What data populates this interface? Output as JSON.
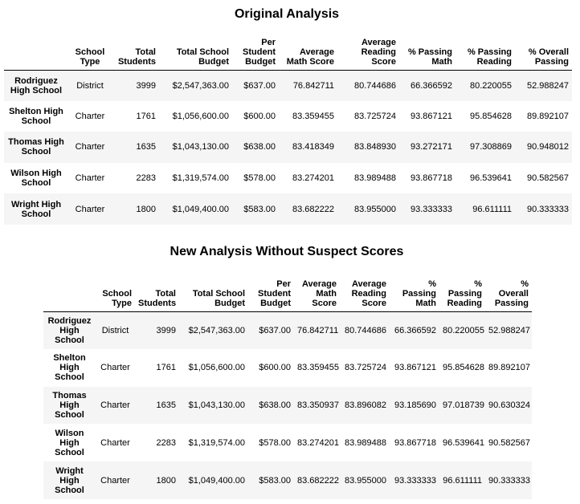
{
  "original": {
    "title": "Original Analysis",
    "columns": [
      "",
      "School Type",
      "Total Students",
      "Total School Budget",
      "Per Student Budget",
      "Average Math Score",
      "Average Reading Score",
      "% Passing Math",
      "% Passing Reading",
      "% Overall Passing"
    ],
    "rows": [
      [
        "Rodriguez High School",
        "District",
        "3999",
        "$2,547,363.00",
        "$637.00",
        "76.842711",
        "80.744686",
        "66.366592",
        "80.220055",
        "52.988247"
      ],
      [
        "Shelton High School",
        "Charter",
        "1761",
        "$1,056,600.00",
        "$600.00",
        "83.359455",
        "83.725724",
        "93.867121",
        "95.854628",
        "89.892107"
      ],
      [
        "Thomas High School",
        "Charter",
        "1635",
        "$1,043,130.00",
        "$638.00",
        "83.418349",
        "83.848930",
        "93.272171",
        "97.308869",
        "90.948012"
      ],
      [
        "Wilson High School",
        "Charter",
        "2283",
        "$1,319,574.00",
        "$578.00",
        "83.274201",
        "83.989488",
        "93.867718",
        "96.539641",
        "90.582567"
      ],
      [
        "Wright High School",
        "Charter",
        "1800",
        "$1,049,400.00",
        "$583.00",
        "83.682222",
        "83.955000",
        "93.333333",
        "96.611111",
        "90.333333"
      ]
    ]
  },
  "revised": {
    "title": "New Analysis Without Suspect Scores",
    "columns": [
      "",
      "School Type",
      "Total Students",
      "Total School Budget",
      "Per Student Budget",
      "Average Math Score",
      "Average Reading Score",
      "% Passing Math",
      "% Passing Reading",
      "% Overall Passing"
    ],
    "rows": [
      [
        "Rodriguez High School",
        "District",
        "3999",
        "$2,547,363.00",
        "$637.00",
        "76.842711",
        "80.744686",
        "66.366592",
        "80.220055",
        "52.988247"
      ],
      [
        "Shelton High School",
        "Charter",
        "1761",
        "$1,056,600.00",
        "$600.00",
        "83.359455",
        "83.725724",
        "93.867121",
        "95.854628",
        "89.892107"
      ],
      [
        "Thomas High School",
        "Charter",
        "1635",
        "$1,043,130.00",
        "$638.00",
        "83.350937",
        "83.896082",
        "93.185690",
        "97.018739",
        "90.630324"
      ],
      [
        "Wilson High School",
        "Charter",
        "2283",
        "$1,319,574.00",
        "$578.00",
        "83.274201",
        "83.989488",
        "93.867718",
        "96.539641",
        "90.582567"
      ],
      [
        "Wright High School",
        "Charter",
        "1800",
        "$1,049,400.00",
        "$583.00",
        "83.682222",
        "83.955000",
        "93.333333",
        "96.611111",
        "90.333333"
      ]
    ]
  }
}
